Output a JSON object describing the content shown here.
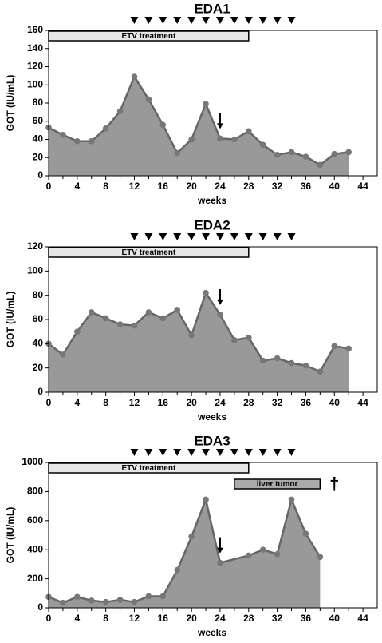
{
  "chart_data": [
    {
      "type": "area",
      "title": "EDA1",
      "x_label": "weeks",
      "y_label": "GOT (IU/mL)",
      "x": [
        0,
        2,
        4,
        6,
        8,
        10,
        12,
        14,
        16,
        18,
        20,
        22,
        24,
        26,
        28,
        30,
        32,
        34,
        36,
        38,
        40,
        42
      ],
      "series": [
        {
          "color": "#999999",
          "values": [
            53,
            45,
            38,
            38,
            52,
            71,
            109,
            84,
            56,
            25,
            40,
            79,
            41,
            40,
            49,
            34,
            23,
            26,
            21,
            12,
            24,
            26
          ]
        }
      ],
      "xlim": [
        0,
        46
      ],
      "xticks": [
        0,
        4,
        8,
        12,
        16,
        20,
        24,
        28,
        32,
        36,
        40,
        44
      ],
      "ylim": [
        0,
        160
      ],
      "yticks": [
        0,
        20,
        40,
        60,
        80,
        100,
        120,
        140,
        160
      ],
      "dose_weeks": [
        12,
        14,
        16,
        18,
        20,
        22,
        24,
        26,
        28,
        30,
        32,
        34
      ],
      "arrow_x": 24,
      "bars": [
        {
          "label": "ETV treatment",
          "start": 0,
          "end": 28,
          "color": "#e6e6e6"
        }
      ]
    },
    {
      "type": "area",
      "title": "EDA2",
      "x_label": "weeks",
      "y_label": "GOT (IU/mL)",
      "x": [
        0,
        2,
        4,
        6,
        8,
        10,
        12,
        14,
        16,
        18,
        20,
        22,
        24,
        26,
        28,
        30,
        32,
        34,
        36,
        38,
        40,
        42
      ],
      "series": [
        {
          "color": "#999999",
          "values": [
            40,
            31,
            50,
            66,
            61,
            56,
            55,
            66,
            61,
            68,
            47,
            82,
            64,
            43,
            45,
            26,
            28,
            24,
            22,
            17,
            38,
            36
          ]
        }
      ],
      "xlim": [
        0,
        46
      ],
      "xticks": [
        0,
        4,
        8,
        12,
        16,
        20,
        24,
        28,
        32,
        36,
        40,
        44
      ],
      "ylim": [
        0,
        120
      ],
      "yticks": [
        0,
        20,
        40,
        60,
        80,
        100,
        120
      ],
      "dose_weeks": [
        12,
        14,
        16,
        18,
        20,
        22,
        24,
        26,
        28,
        30,
        32,
        34
      ],
      "arrow_x": 24,
      "bars": [
        {
          "label": "ETV treatment",
          "start": 0,
          "end": 28,
          "color": "#e6e6e6"
        }
      ]
    },
    {
      "type": "area",
      "title": "EDA3",
      "x_label": "weeks",
      "y_label": "GOT (IU/mL)",
      "x": [
        0,
        2,
        4,
        6,
        8,
        10,
        12,
        14,
        16,
        18,
        20,
        22,
        24,
        28,
        30,
        32,
        34,
        36,
        38
      ],
      "series": [
        {
          "color": "#999999",
          "values": [
            75,
            35,
            75,
            50,
            40,
            55,
            40,
            80,
            80,
            260,
            490,
            745,
            310,
            360,
            400,
            370,
            745,
            510,
            350
          ]
        }
      ],
      "xlim": [
        0,
        46
      ],
      "xticks": [
        0,
        4,
        8,
        12,
        16,
        20,
        24,
        28,
        32,
        36,
        40,
        44
      ],
      "ylim": [
        0,
        1000
      ],
      "yticks": [
        0,
        200,
        400,
        600,
        800,
        1000
      ],
      "dose_weeks": [
        12,
        14,
        16,
        18,
        20,
        22,
        24,
        26,
        28,
        30,
        32,
        34
      ],
      "arrow_x": 24,
      "bars": [
        {
          "label": "ETV treatment",
          "start": 0,
          "end": 28,
          "color": "#e6e6e6"
        },
        {
          "label": "liver tumor",
          "start": 26,
          "end": 38,
          "color": "#aaaaaa"
        }
      ],
      "dagger": {
        "text": "†",
        "x": 40
      }
    }
  ]
}
